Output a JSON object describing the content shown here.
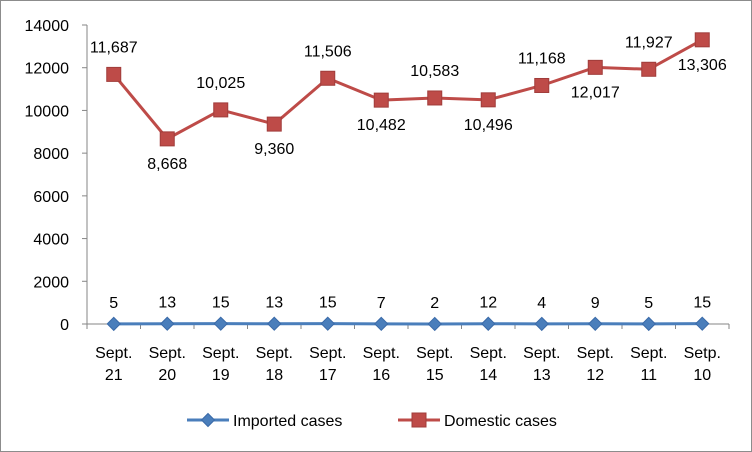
{
  "chart_data": {
    "type": "line",
    "title": "",
    "xlabel": "",
    "ylabel": "",
    "ylim": [
      0,
      14000
    ],
    "yticks": [
      0,
      2000,
      4000,
      6000,
      8000,
      10000,
      12000,
      14000
    ],
    "grid": false,
    "legend_position": "bottom",
    "categories": [
      [
        "Sept.",
        "21"
      ],
      [
        "Sept.",
        "20"
      ],
      [
        "Sept.",
        "19"
      ],
      [
        "Sept.",
        "18"
      ],
      [
        "Sept.",
        "17"
      ],
      [
        "Sept.",
        "16"
      ],
      [
        "Sept.",
        "15"
      ],
      [
        "Sept.",
        "14"
      ],
      [
        "Sept.",
        "13"
      ],
      [
        "Sept.",
        "12"
      ],
      [
        "Sept.",
        "11"
      ],
      [
        "Setp.",
        "10"
      ]
    ],
    "series": [
      {
        "name": "Imported cases",
        "color": "#4a7ebb",
        "marker": "diamond",
        "values": [
          5,
          13,
          15,
          13,
          15,
          7,
          2,
          12,
          4,
          9,
          5,
          15
        ],
        "labels": [
          "5",
          "13",
          "15",
          "13",
          "15",
          "7",
          "2",
          "12",
          "4",
          "9",
          "5",
          "15"
        ]
      },
      {
        "name": "Domestic cases",
        "color": "#be4b48",
        "marker": "square",
        "values": [
          11687,
          8668,
          10025,
          9360,
          11506,
          10482,
          10583,
          10496,
          11168,
          12017,
          11927,
          13306
        ],
        "labels": [
          "11,687",
          "8,668",
          "10,025",
          "9,360",
          "11,506",
          "10,482",
          "10,583",
          "10,496",
          "11,168",
          "12,017",
          "11,927",
          "13,306"
        ],
        "label_positions": [
          "above",
          "below",
          "above",
          "below",
          "above",
          "below",
          "above",
          "below",
          "above",
          "below",
          "above",
          "below"
        ]
      }
    ]
  }
}
